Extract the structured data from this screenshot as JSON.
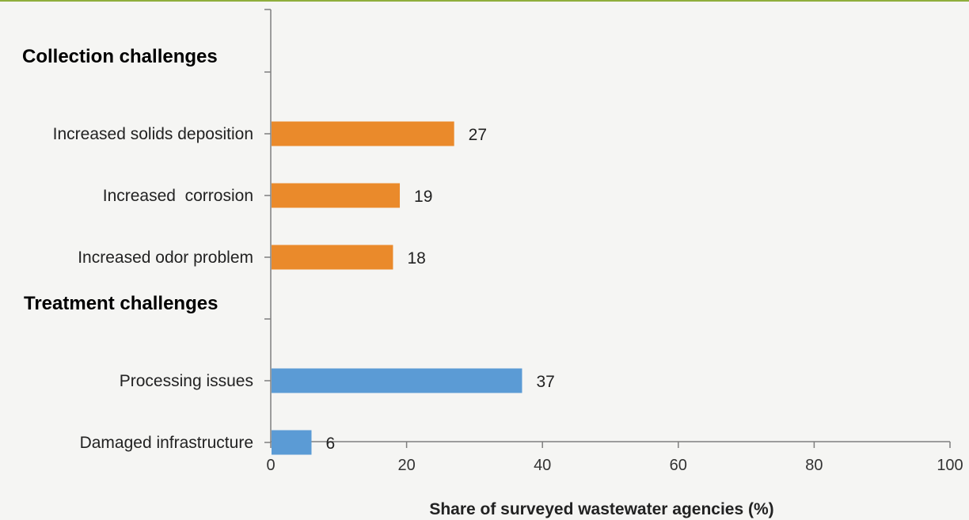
{
  "chart_data": {
    "type": "bar",
    "orientation": "horizontal",
    "xlabel": "Share of surveyed wastewater agencies (%)",
    "xlim": [
      0,
      100
    ],
    "xticks": [
      0,
      20,
      40,
      60,
      80,
      100
    ],
    "groups": [
      {
        "title": "Collection challenges",
        "color": "#ea8a2b",
        "categories": [
          "Increased solids deposition",
          "Increased  corrosion",
          "Increased odor problem"
        ],
        "values": [
          27,
          19,
          18
        ]
      },
      {
        "title": "Treatment challenges",
        "color": "#5b9bd5",
        "categories": [
          "Processing issues",
          "Damaged infrastructure"
        ],
        "values": [
          37,
          6
        ]
      }
    ]
  }
}
